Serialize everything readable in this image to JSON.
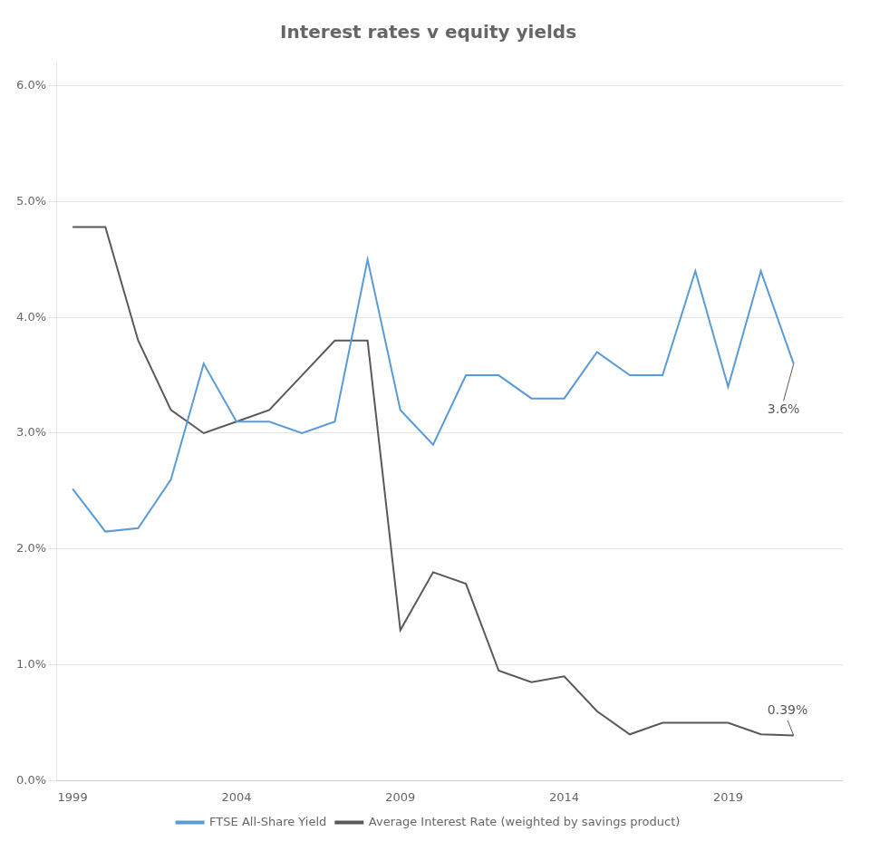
{
  "chart_data": {
    "type": "line",
    "title": "Interest rates v equity yields",
    "x": [
      1999,
      2000,
      2001,
      2002,
      2003,
      2004,
      2005,
      2006,
      2007,
      2008,
      2009,
      2010,
      2011,
      2012,
      2013,
      2014,
      2015,
      2016,
      2017,
      2018,
      2019,
      2020,
      2021
    ],
    "series": [
      {
        "name": "FTSE All-Share Yield",
        "color": "#5b9bd5",
        "values": [
          0.0252,
          0.0215,
          0.0218,
          0.026,
          0.036,
          0.031,
          0.031,
          0.03,
          0.031,
          0.045,
          0.032,
          0.029,
          0.035,
          0.035,
          0.033,
          0.033,
          0.037,
          0.035,
          0.035,
          0.044,
          0.034,
          0.044,
          0.036
        ]
      },
      {
        "name": "Average Interest Rate (weighted by savings product)",
        "color": "#595959",
        "values": [
          0.0478,
          0.0478,
          0.038,
          0.032,
          0.03,
          0.031,
          0.032,
          0.035,
          0.038,
          0.038,
          0.013,
          0.018,
          0.017,
          0.0095,
          0.0085,
          0.009,
          0.006,
          0.004,
          0.005,
          0.005,
          0.005,
          0.004,
          0.0039
        ]
      }
    ],
    "annotations": [
      {
        "text": "3.6%",
        "x": 2020.2,
        "y": 0.032,
        "point_x": 2021,
        "point_y": 0.036,
        "color": "#595959"
      },
      {
        "text": "0.39%",
        "x": 2020.2,
        "y": 0.006,
        "point_x": 2021,
        "point_y": 0.0039,
        "color": "#595959"
      }
    ],
    "xlim": [
      1998.5,
      2022.5
    ],
    "xticks": [
      1999,
      2004,
      2009,
      2014,
      2019
    ],
    "ylim": [
      0.0,
      0.062
    ],
    "yticks": [
      {
        "value": 0.0,
        "label": "0.0%"
      },
      {
        "value": 0.01,
        "label": "1.0%"
      },
      {
        "value": 0.02,
        "label": "2.0%"
      },
      {
        "value": 0.03,
        "label": "3.0%"
      },
      {
        "value": 0.04,
        "label": "4.0%"
      },
      {
        "value": 0.05,
        "label": "5.0%"
      },
      {
        "value": 0.06,
        "label": "6.0%"
      }
    ],
    "grid": "y",
    "legend": "bottom"
  }
}
